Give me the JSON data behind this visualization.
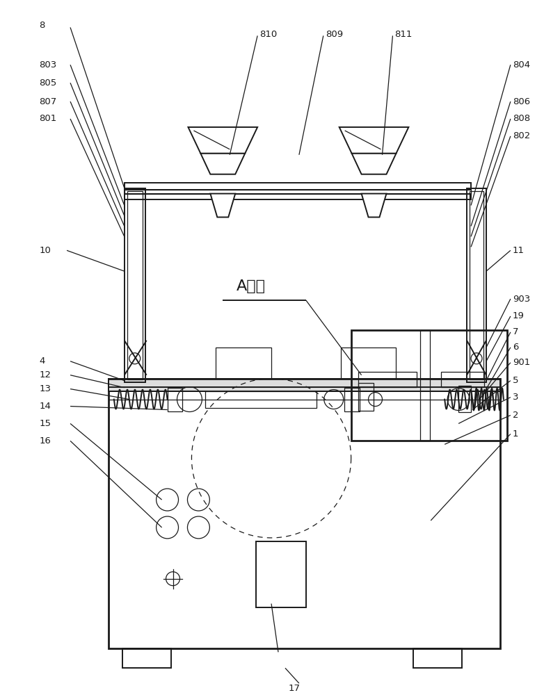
{
  "bg_color": "#ffffff",
  "lc": "#1a1a1a",
  "lw": 1.4,
  "tlw": 0.9,
  "thickw": 2.0,
  "fs": 9.5,
  "figsize": [
    8.05,
    10.0
  ],
  "dpi": 100
}
